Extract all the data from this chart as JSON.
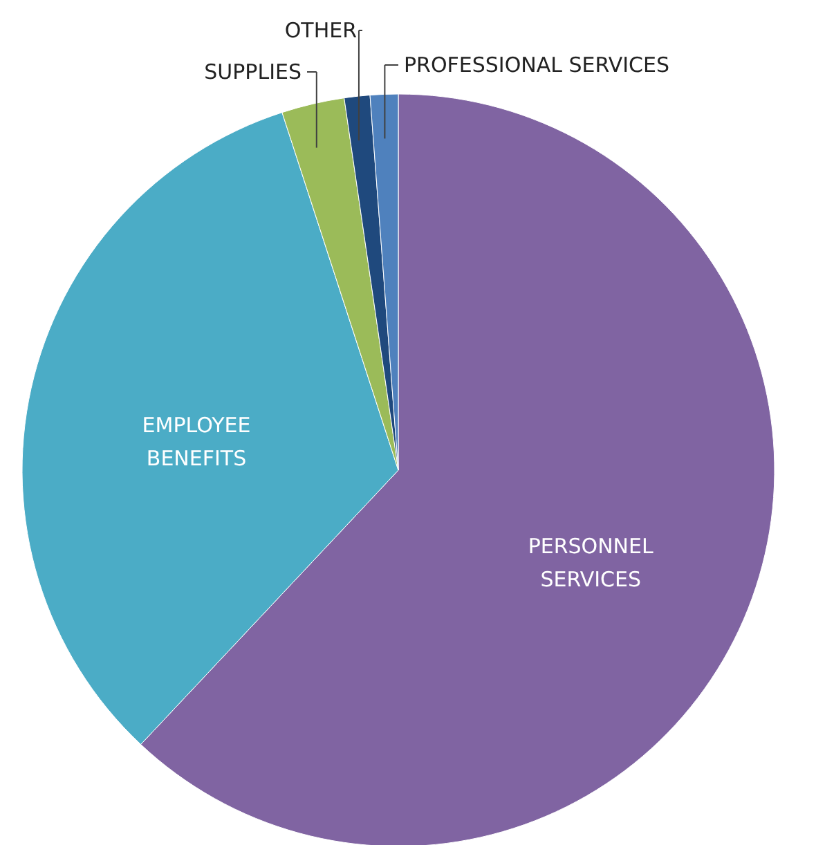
{
  "chart_data": {
    "type": "pie",
    "categories": [
      "PERSONNEL SERVICES",
      "EMPLOYEE BENEFITS",
      "SUPPLIES",
      "OTHER",
      "PROFESSIONAL SERVICES"
    ],
    "values": [
      62,
      33,
      2.7,
      1.1,
      1.2
    ],
    "colors": [
      "#8064a2",
      "#4bacc6",
      "#9bbb59",
      "#1f497d",
      "#4f81bd"
    ]
  }
}
